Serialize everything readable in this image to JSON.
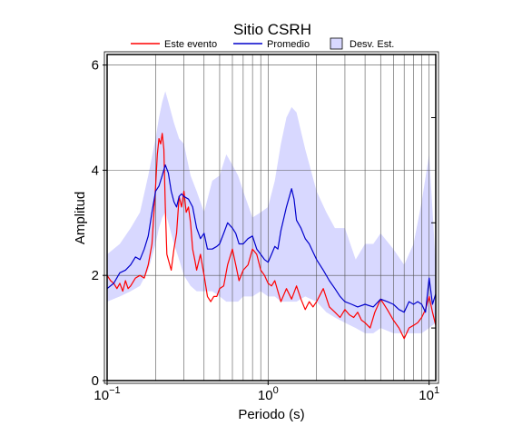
{
  "chart_data": {
    "type": "line",
    "title": "Sitio CSRH",
    "xlabel": "Periodo (s)",
    "ylabel": "Amplitud",
    "x_scale": "log",
    "xlim": [
      0.1,
      11
    ],
    "ylim": [
      0,
      6.2
    ],
    "x_ticks": [
      {
        "value": 0.1,
        "base": "10",
        "exp": "−1"
      },
      {
        "value": 1,
        "base": "10",
        "exp": "0"
      },
      {
        "value": 10,
        "base": "10",
        "exp": "1"
      }
    ],
    "y_ticks": [
      0,
      2,
      4,
      6
    ],
    "grid": true,
    "legend_position": "top",
    "legend": [
      {
        "label": "Este evento",
        "kind": "line",
        "color": "#ff0000"
      },
      {
        "label": "Promedio",
        "kind": "line",
        "color": "#0000cc"
      },
      {
        "label": "Desv. Est.",
        "kind": "band",
        "color": "#d8d8ff"
      }
    ],
    "band": {
      "name": "Desv. Est.",
      "color": "#d8d8ff",
      "x": [
        0.1,
        0.12,
        0.14,
        0.16,
        0.18,
        0.2,
        0.21,
        0.22,
        0.23,
        0.24,
        0.26,
        0.28,
        0.3,
        0.33,
        0.36,
        0.4,
        0.45,
        0.5,
        0.55,
        0.6,
        0.65,
        0.7,
        0.8,
        0.9,
        1.0,
        1.1,
        1.2,
        1.3,
        1.4,
        1.5,
        1.7,
        2.0,
        2.3,
        2.6,
        3.0,
        3.5,
        4.0,
        4.5,
        5.0,
        6.0,
        7.0,
        8.0,
        9.0,
        10.0,
        11.0
      ],
      "upper": [
        2.4,
        2.6,
        2.9,
        3.2,
        3.9,
        4.6,
        5.0,
        5.3,
        5.5,
        5.3,
        4.9,
        4.6,
        4.5,
        3.9,
        3.6,
        3.2,
        3.8,
        3.9,
        4.3,
        4.1,
        3.9,
        3.6,
        3.1,
        3.2,
        3.3,
        3.8,
        4.5,
        5.0,
        5.2,
        5.1,
        4.4,
        3.6,
        3.2,
        2.9,
        2.9,
        2.3,
        2.6,
        2.6,
        2.8,
        2.5,
        2.2,
        2.6,
        3.4,
        4.3,
        2.2
      ],
      "lower": [
        1.5,
        1.6,
        1.7,
        1.8,
        2.1,
        2.6,
        2.9,
        3.1,
        3.2,
        3.0,
        2.6,
        2.3,
        2.0,
        1.8,
        1.7,
        1.7,
        1.7,
        1.6,
        1.5,
        1.5,
        1.5,
        1.6,
        1.6,
        1.7,
        1.6,
        1.6,
        1.5,
        1.5,
        1.5,
        1.5,
        1.6,
        1.5,
        1.3,
        1.2,
        1.1,
        1.0,
        0.9,
        0.9,
        1.0,
        0.9,
        0.9,
        0.9,
        0.9,
        1.0,
        1.1
      ]
    },
    "series": [
      {
        "name": "Este evento",
        "color": "#ff0000",
        "x": [
          0.1,
          0.105,
          0.11,
          0.115,
          0.12,
          0.125,
          0.13,
          0.135,
          0.14,
          0.15,
          0.16,
          0.17,
          0.18,
          0.19,
          0.2,
          0.205,
          0.21,
          0.215,
          0.22,
          0.225,
          0.23,
          0.235,
          0.24,
          0.245,
          0.25,
          0.26,
          0.27,
          0.28,
          0.29,
          0.3,
          0.31,
          0.32,
          0.33,
          0.34,
          0.35,
          0.36,
          0.38,
          0.4,
          0.42,
          0.44,
          0.46,
          0.48,
          0.5,
          0.53,
          0.56,
          0.6,
          0.63,
          0.66,
          0.7,
          0.75,
          0.8,
          0.85,
          0.9,
          0.95,
          1.0,
          1.05,
          1.1,
          1.2,
          1.3,
          1.4,
          1.5,
          1.6,
          1.7,
          1.8,
          1.9,
          2.0,
          2.2,
          2.4,
          2.6,
          2.8,
          3.0,
          3.2,
          3.4,
          3.6,
          3.8,
          4.0,
          4.3,
          4.6,
          5.0,
          5.5,
          6.0,
          6.5,
          7.0,
          7.5,
          8.0,
          8.5,
          9.0,
          9.5,
          10.0,
          10.5,
          11.0
        ],
        "y": [
          2.0,
          1.9,
          1.85,
          1.75,
          1.85,
          1.7,
          1.9,
          1.75,
          1.8,
          1.95,
          2.0,
          1.95,
          2.2,
          2.6,
          3.7,
          4.3,
          4.6,
          4.5,
          4.7,
          4.4,
          3.3,
          2.4,
          2.3,
          2.2,
          2.1,
          2.5,
          2.8,
          3.5,
          3.3,
          3.6,
          3.2,
          3.3,
          3.0,
          2.5,
          2.3,
          2.1,
          2.4,
          2.0,
          1.6,
          1.5,
          1.6,
          1.6,
          1.75,
          1.8,
          2.2,
          2.5,
          2.2,
          1.9,
          2.1,
          2.2,
          2.5,
          2.4,
          2.1,
          2.0,
          1.85,
          1.8,
          1.9,
          1.5,
          1.75,
          1.55,
          1.8,
          1.55,
          1.35,
          1.5,
          1.4,
          1.5,
          1.75,
          1.4,
          1.3,
          1.2,
          1.35,
          1.25,
          1.2,
          1.3,
          1.15,
          1.1,
          1.0,
          1.3,
          1.55,
          1.35,
          1.15,
          1.0,
          0.8,
          1.0,
          1.05,
          1.1,
          1.2,
          1.35,
          1.6,
          1.3,
          1.05
        ]
      },
      {
        "name": "Promedio",
        "color": "#0000cc",
        "x": [
          0.1,
          0.11,
          0.12,
          0.13,
          0.14,
          0.15,
          0.16,
          0.17,
          0.18,
          0.19,
          0.2,
          0.21,
          0.22,
          0.23,
          0.24,
          0.25,
          0.26,
          0.27,
          0.28,
          0.29,
          0.3,
          0.32,
          0.34,
          0.36,
          0.38,
          0.4,
          0.42,
          0.45,
          0.48,
          0.5,
          0.53,
          0.56,
          0.6,
          0.63,
          0.66,
          0.7,
          0.75,
          0.8,
          0.85,
          0.9,
          0.95,
          1.0,
          1.05,
          1.1,
          1.15,
          1.2,
          1.3,
          1.4,
          1.45,
          1.5,
          1.6,
          1.7,
          1.8,
          2.0,
          2.2,
          2.4,
          2.6,
          2.8,
          3.0,
          3.3,
          3.6,
          4.0,
          4.5,
          5.0,
          5.5,
          6.0,
          6.5,
          7.0,
          7.5,
          8.0,
          8.5,
          9.0,
          9.5,
          10.0,
          10.5,
          11.0
        ],
        "y": [
          1.75,
          1.85,
          2.05,
          2.1,
          2.2,
          2.35,
          2.3,
          2.5,
          2.75,
          3.2,
          3.6,
          3.7,
          3.9,
          4.1,
          3.95,
          3.6,
          3.4,
          3.3,
          3.5,
          3.55,
          3.5,
          3.45,
          3.3,
          2.9,
          2.7,
          2.8,
          2.5,
          2.5,
          2.55,
          2.6,
          2.8,
          3.0,
          2.9,
          2.8,
          2.6,
          2.6,
          2.7,
          2.75,
          2.5,
          2.4,
          2.3,
          2.25,
          2.4,
          2.55,
          2.5,
          2.85,
          3.3,
          3.65,
          3.45,
          3.05,
          2.9,
          2.7,
          2.6,
          2.3,
          2.1,
          1.9,
          1.75,
          1.6,
          1.5,
          1.45,
          1.4,
          1.45,
          1.4,
          1.55,
          1.5,
          1.45,
          1.35,
          1.3,
          1.5,
          1.45,
          1.5,
          1.45,
          1.3,
          1.95,
          1.45,
          1.65
        ]
      }
    ]
  }
}
